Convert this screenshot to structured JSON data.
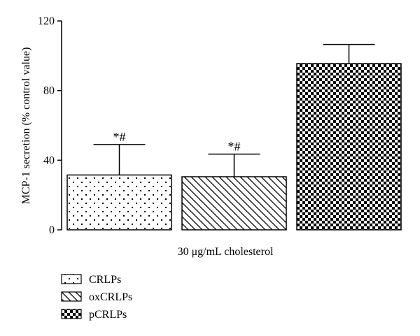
{
  "chart_data": {
    "type": "bar",
    "categories": [
      "CRLPs",
      "oxCRLPs",
      "pCRLPs"
    ],
    "values": [
      31.5,
      30.5,
      95.5
    ],
    "errors": [
      17.5,
      13,
      11
    ],
    "annotations": [
      "*#",
      "*#",
      ""
    ],
    "patterns": [
      "dots",
      "diagonal-lines",
      "checkerboard"
    ],
    "xlabel": "30 μg/mL cholesterol",
    "ylabel": "MCP-1 secretion (% control value)",
    "ylim": [
      0,
      120
    ],
    "yticks": [
      0,
      40,
      80,
      120
    ],
    "legend": [
      "CRLPs",
      "oxCRLPs",
      "pCRLPs"
    ],
    "legend_position": "bottom-left",
    "grid": false
  }
}
